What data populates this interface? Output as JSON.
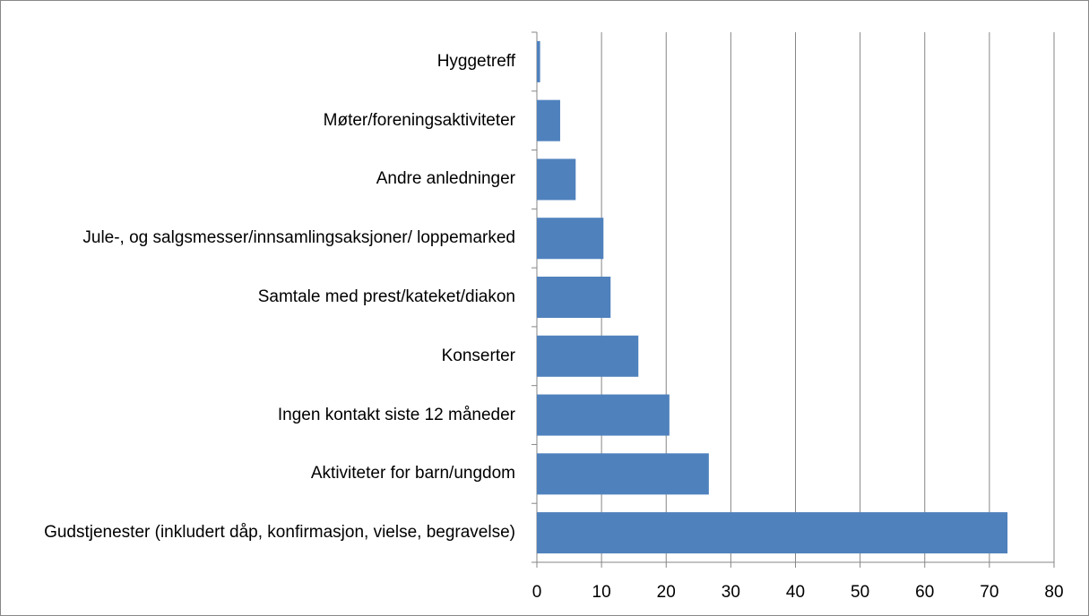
{
  "chart_data": {
    "type": "bar",
    "orientation": "horizontal",
    "categories": [
      "Hyggetreff",
      "Møter/foreningsaktiviteter",
      "Andre anledninger",
      "Jule-, og salgsmesser/innsamlingsaksjoner/ loppemarked",
      "Samtale med prest/kateket/diakon",
      "Konserter",
      "Ingen kontakt siste 12 måneder",
      "Aktiviteter for barn/ungdom",
      "Gudstjenester (inkludert dåp, konfirmasjon, vielse, begravelse)"
    ],
    "values": [
      0.5,
      3.6,
      6,
      10.3,
      11.4,
      15.7,
      20.5,
      26.6,
      72.8
    ],
    "color": "#4f81bd",
    "xlim": [
      0,
      80
    ],
    "xticks": [
      0,
      10,
      20,
      30,
      40,
      50,
      60,
      70,
      80
    ],
    "grid": true
  }
}
